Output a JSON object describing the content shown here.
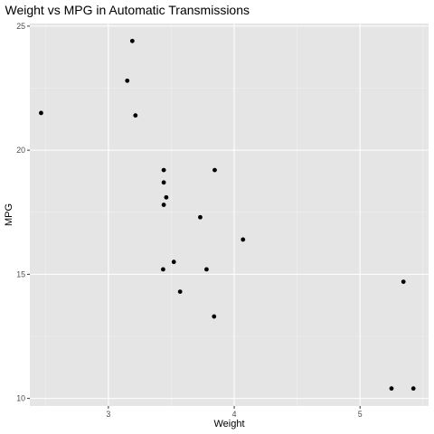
{
  "chart_data": {
    "type": "scatter",
    "title": "Weight vs MPG in Automatic Transmissions",
    "xlabel": "Weight",
    "ylabel": "MPG",
    "xlim": [
      2.3757,
      5.5448
    ],
    "ylim": [
      9.695,
      25.105
    ],
    "x_ticks": [
      3,
      4,
      5
    ],
    "y_ticks": [
      10,
      15,
      20,
      25
    ],
    "x_minor_ticks": [
      2.5,
      3.5,
      4.5,
      5.5
    ],
    "y_minor_ticks": [
      12.5,
      17.5,
      22.5
    ],
    "grid": true,
    "legend": "none",
    "colors": {
      "panel_background": "#e5e5e5",
      "grid_major": "#ffffff",
      "grid_minor": "#f2f2f2",
      "point": "#000000",
      "tick_label": "#4d4d4d"
    },
    "points": [
      {
        "x": 2.465,
        "y": 21.5
      },
      {
        "x": 3.15,
        "y": 22.8
      },
      {
        "x": 3.19,
        "y": 24.4
      },
      {
        "x": 3.215,
        "y": 21.4
      },
      {
        "x": 3.435,
        "y": 15.2
      },
      {
        "x": 3.44,
        "y": 18.7
      },
      {
        "x": 3.44,
        "y": 19.2
      },
      {
        "x": 3.44,
        "y": 17.8
      },
      {
        "x": 3.46,
        "y": 18.1
      },
      {
        "x": 3.52,
        "y": 15.5
      },
      {
        "x": 3.57,
        "y": 14.3
      },
      {
        "x": 3.73,
        "y": 17.3
      },
      {
        "x": 3.78,
        "y": 15.2
      },
      {
        "x": 3.84,
        "y": 13.3
      },
      {
        "x": 3.845,
        "y": 19.2
      },
      {
        "x": 4.07,
        "y": 16.4
      },
      {
        "x": 5.25,
        "y": 10.4
      },
      {
        "x": 5.345,
        "y": 14.7
      },
      {
        "x": 5.424,
        "y": 10.4
      }
    ]
  }
}
